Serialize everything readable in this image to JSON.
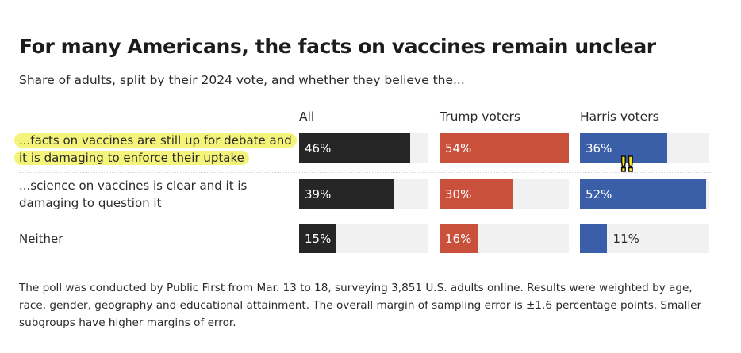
{
  "title": "For many Americans, the facts on vaccines remain unclear",
  "subtitle": "Share of adults, split by their 2024 vote, and whether they believe the...",
  "note": "The poll was conducted by Public First from Mar. 13 to 18, surveying 3,851 U.S. adults online. Results were weighted by age, race, gender, geography and educational attainment. The overall margin of sampling error is ±1.6 percentage points. Smaller subgroups have higher margins of error.",
  "annotation": {
    "glyph": "!!",
    "icon": "double-exclamation-icon",
    "color": "#f5e61a"
  },
  "highlight_color": "#f4f47a",
  "chart_data": {
    "type": "bar",
    "orientation": "horizontal",
    "title": "For many Americans, the facts on vaccines remain unclear",
    "subtitle": "Share of adults, split by their 2024 vote, and whether they believe the...",
    "xlabel": "",
    "ylabel": "",
    "xlim": [
      0,
      52
    ],
    "unit": "%",
    "grid": false,
    "legend": "none",
    "layout": "small-multiples",
    "categories": [
      {
        "label_lines": [
          "...facts on vaccines are still up for debate and",
          "it is damaging to enforce their uptake"
        ],
        "highlighted": true
      },
      {
        "label_lines": [
          "...science on vaccines is clear and it is",
          "damaging to question it"
        ],
        "highlighted": false
      },
      {
        "label_lines": [
          "Neither"
        ],
        "highlighted": false
      }
    ],
    "series": [
      {
        "name": "All",
        "color": "#262626",
        "values": [
          46,
          39,
          15
        ]
      },
      {
        "name": "Trump voters",
        "color": "#c9503a",
        "values": [
          54,
          30,
          16
        ]
      },
      {
        "name": "Harris voters",
        "color": "#3a5fa8",
        "values": [
          36,
          52,
          11
        ]
      }
    ],
    "value_labels": [
      [
        "46%",
        "39%",
        "15%"
      ],
      [
        "54%",
        "30%",
        "16%"
      ],
      [
        "36%",
        "52%",
        "11%"
      ]
    ],
    "track_color": "#f1f1f1"
  }
}
